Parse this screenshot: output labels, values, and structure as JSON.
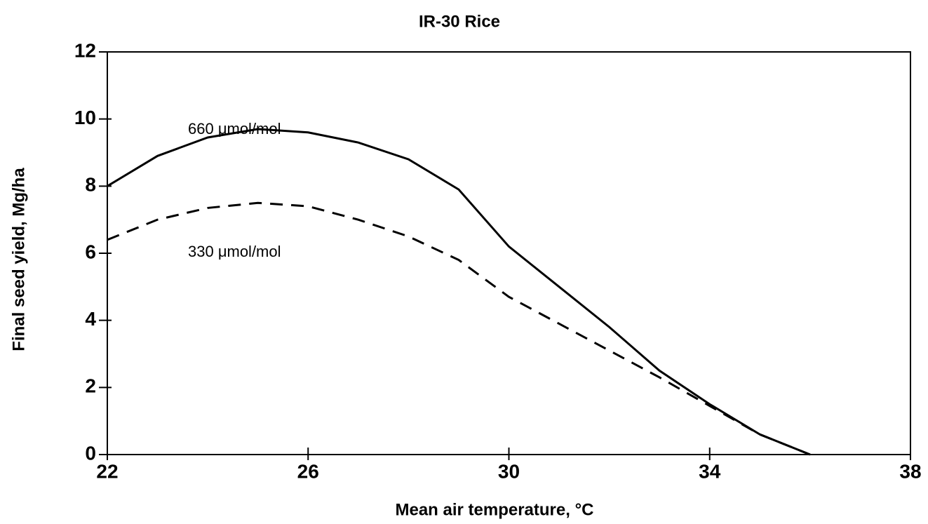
{
  "chart_data": {
    "type": "line",
    "title": "IR-30 Rice",
    "xlabel": "Mean air temperature, °C",
    "ylabel": "Final seed yield, Mg/ha",
    "x": [
      22,
      23,
      24,
      25,
      26,
      27,
      28,
      29,
      30,
      31,
      32,
      33,
      34,
      35,
      36
    ],
    "series": [
      {
        "name": "660 μmol/mol",
        "color": "#000000",
        "style": "solid",
        "values": [
          8.0,
          8.9,
          9.45,
          9.7,
          9.6,
          9.3,
          8.8,
          7.9,
          6.2,
          5.0,
          3.8,
          2.5,
          1.5,
          0.6,
          0
        ]
      },
      {
        "name": "330 μmol/mol",
        "color": "#000000",
        "style": "dashed",
        "values": [
          6.4,
          7.0,
          7.35,
          7.5,
          7.4,
          7.0,
          6.5,
          5.8,
          4.7,
          3.9,
          3.1,
          2.3,
          1.45,
          0.6,
          0
        ]
      }
    ],
    "xlim": [
      22,
      38
    ],
    "xticks": [
      22,
      26,
      30,
      34,
      38
    ],
    "ylim": [
      0,
      12
    ],
    "yticks": [
      0,
      2,
      4,
      6,
      8,
      10,
      12
    ],
    "grid": false
  }
}
